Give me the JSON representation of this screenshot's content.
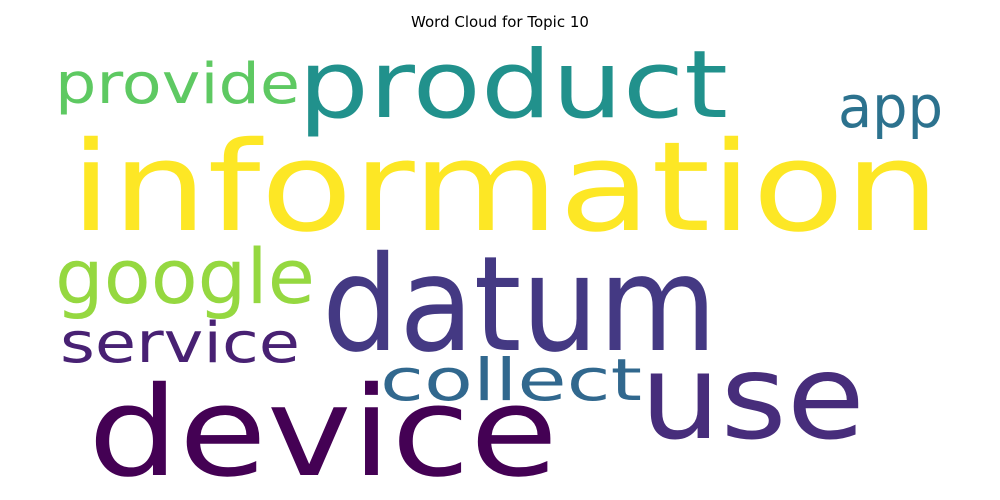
{
  "chart_data": {
    "type": "wordcloud",
    "title": "Word Cloud for Topic 10",
    "words": [
      {
        "text": "information",
        "color": "#fde725"
      },
      {
        "text": "datum",
        "color": "#443983"
      },
      {
        "text": "device",
        "color": "#440154"
      },
      {
        "text": "product",
        "color": "#21918c"
      },
      {
        "text": "use",
        "color": "#472d7b"
      },
      {
        "text": "google",
        "color": "#95d840"
      },
      {
        "text": "collect",
        "color": "#31688e"
      },
      {
        "text": "service",
        "color": "#482173"
      },
      {
        "text": "provide",
        "color": "#5ec962"
      },
      {
        "text": "app",
        "color": "#2c728e"
      }
    ],
    "background": "#ffffff"
  }
}
